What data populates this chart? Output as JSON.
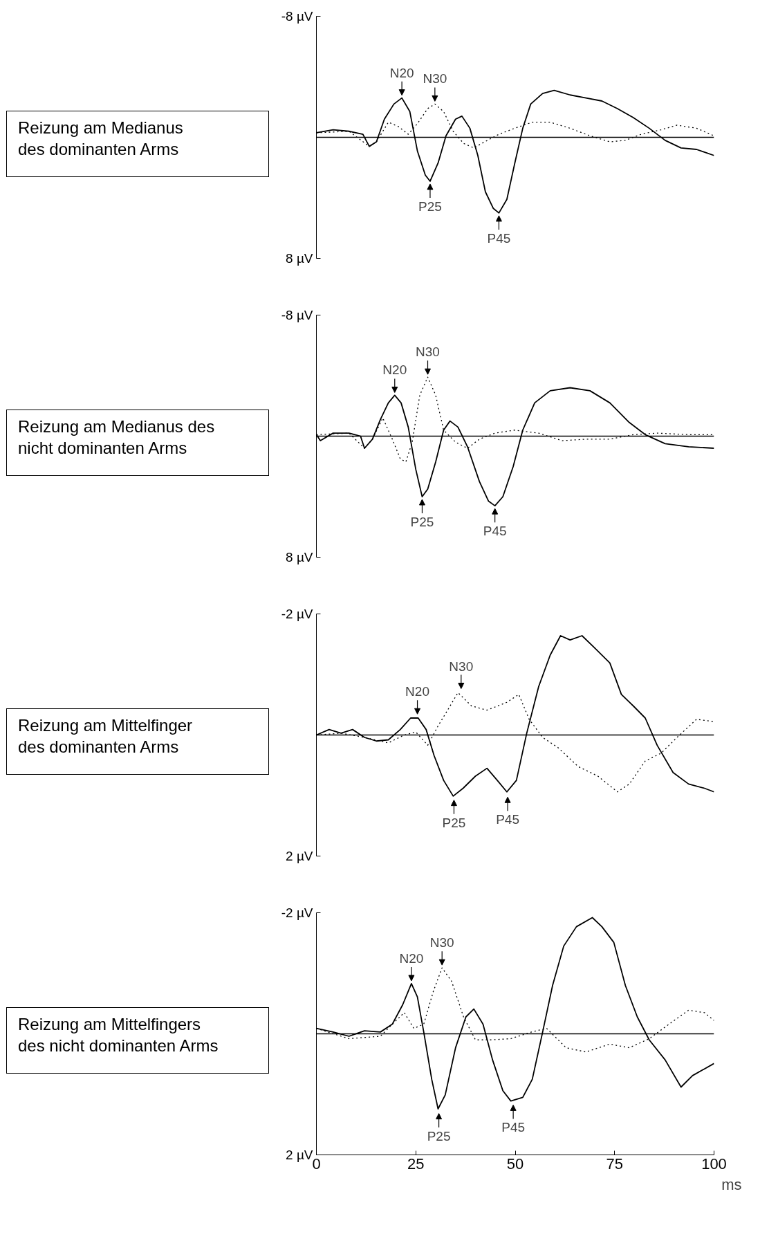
{
  "chart_data": [
    {
      "type": "line",
      "title": "Reizung am Medianus\ndes dominanten Arms",
      "xlim": [
        0,
        100
      ],
      "ylim": [
        8,
        -8
      ],
      "yticks": [
        {
          "value": -8,
          "label": "-8 µV"
        },
        {
          "value": 8,
          "label": "8 µV"
        }
      ],
      "tick_labels": "y",
      "grid": false,
      "ref_lines": [
        {
          "axis": "y",
          "value": 0,
          "color": "#000000"
        }
      ],
      "annotations": [
        {
          "text": "N20",
          "x": 21.5,
          "y": -2.6
        },
        {
          "text": "N30",
          "x": 29.8,
          "y": -2.2
        },
        {
          "text": "P25",
          "x": 28.6,
          "y": 2.9
        },
        {
          "text": "P45",
          "x": 45.9,
          "y": 5.0
        }
      ],
      "series": [
        {
          "color": "#000000",
          "line_style": "solid",
          "x": [
            0,
            4.2,
            8.2,
            11.7,
            13.3,
            15.1,
            17.1,
            19.5,
            21.5,
            23.5,
            25.4,
            27.4,
            28.6,
            30.6,
            32.6,
            35.0,
            36.6,
            38.6,
            40.6,
            42.5,
            44.5,
            45.9,
            47.9,
            49.9,
            51.9,
            53.9,
            56.9,
            59.8,
            63.8,
            67.8,
            71.8,
            75.7,
            79.7,
            83.7,
            87.7,
            91.7,
            95.6,
            100
          ],
          "values": [
            -0.3,
            -0.5,
            -0.4,
            -0.2,
            0.6,
            0.3,
            -1.2,
            -2.2,
            -2.6,
            -1.7,
            0.9,
            2.5,
            2.9,
            1.7,
            -0.1,
            -1.2,
            -1.4,
            -0.6,
            1.2,
            3.6,
            4.7,
            5.0,
            4.1,
            1.7,
            -0.6,
            -2.2,
            -2.9,
            -3.1,
            -2.8,
            -2.6,
            -2.4,
            -1.9,
            -1.3,
            -0.6,
            0.2,
            0.7,
            0.8,
            1.2
          ]
        },
        {
          "color": "#000000",
          "line_style": "dotted",
          "x": [
            0,
            8.2,
            13.3,
            15.1,
            18.1,
            20.7,
            23.1,
            25.4,
            28.0,
            29.8,
            32.0,
            34.4,
            37.0,
            39.6,
            42.3,
            45.9,
            49.9,
            54.3,
            58.8,
            63.8,
            68.8,
            73.8,
            77.7,
            81.7,
            86.7,
            90.7,
            95.6,
            100
          ],
          "values": [
            -0.3,
            -0.4,
            0.6,
            0.3,
            -1.0,
            -0.7,
            -0.2,
            -0.9,
            -1.9,
            -2.2,
            -1.7,
            -0.4,
            0.4,
            0.7,
            0.3,
            -0.2,
            -0.6,
            -1.0,
            -1.0,
            -0.6,
            -0.1,
            0.3,
            0.2,
            -0.2,
            -0.5,
            -0.8,
            -0.6,
            -0.1
          ]
        }
      ]
    },
    {
      "type": "line",
      "title": "Reizung am Medianus des\nnicht dominanten Arms",
      "xlim": [
        0,
        100
      ],
      "ylim": [
        8,
        -8
      ],
      "yticks": [
        {
          "value": -8,
          "label": "-8 µV"
        },
        {
          "value": 8,
          "label": "8 µV"
        }
      ],
      "tick_labels": "y",
      "grid": false,
      "ref_lines": [
        {
          "axis": "y",
          "value": 0,
          "color": "#000000"
        }
      ],
      "annotations": [
        {
          "text": "N20",
          "x": 19.7,
          "y": -2.7
        },
        {
          "text": "N30",
          "x": 28.0,
          "y": -3.9
        },
        {
          "text": "P25",
          "x": 26.6,
          "y": 4.0
        },
        {
          "text": "P45",
          "x": 44.9,
          "y": 4.6
        }
      ],
      "series": [
        {
          "color": "#000000",
          "line_style": "solid",
          "x": [
            0,
            1.0,
            4.2,
            8.2,
            11.1,
            12.1,
            14.1,
            16.1,
            18.1,
            19.7,
            21.3,
            23.1,
            25.0,
            26.6,
            28.0,
            30.0,
            32.0,
            33.6,
            35.6,
            38.0,
            41.0,
            43.3,
            44.9,
            46.9,
            49.5,
            51.9,
            54.9,
            58.8,
            63.8,
            68.8,
            73.8,
            78.7,
            82.7,
            87.7,
            93.6,
            100
          ],
          "values": [
            -0.1,
            0.3,
            -0.2,
            -0.2,
            0,
            0.8,
            0.2,
            -1.1,
            -2.2,
            -2.7,
            -2.2,
            -0.6,
            2.2,
            4.0,
            3.5,
            1.7,
            -0.4,
            -1.0,
            -0.6,
            0.7,
            3.0,
            4.3,
            4.6,
            4.0,
            2.0,
            -0.4,
            -2.2,
            -3.0,
            -3.2,
            -3.0,
            -2.2,
            -0.9,
            -0.1,
            0.5,
            0.7,
            0.8
          ]
        },
        {
          "color": "#000000",
          "line_style": "dotted",
          "x": [
            0,
            8.2,
            12.1,
            14.1,
            16.7,
            19.1,
            21.1,
            22.5,
            24.1,
            26.0,
            28.0,
            30.0,
            32.0,
            35.0,
            38.0,
            41.0,
            44.9,
            49.9,
            55.9,
            61.8,
            67.8,
            73.8,
            79.7,
            85.7,
            93.6,
            100
          ],
          "values": [
            -0.1,
            -0.2,
            0.8,
            0.2,
            -1.2,
            0.2,
            1.5,
            1.7,
            0.4,
            -2.7,
            -3.9,
            -2.7,
            -0.4,
            0.4,
            0.8,
            0.2,
            -0.2,
            -0.4,
            -0.2,
            0.3,
            0.2,
            0.2,
            -0.1,
            -0.2,
            -0.1,
            -0.1
          ]
        }
      ]
    },
    {
      "type": "line",
      "title": "Reizung am Mittelfinger\ndes dominanten Arms",
      "xlim": [
        0,
        100
      ],
      "ylim": [
        2,
        -2
      ],
      "yticks": [
        {
          "value": -2,
          "label": "-2 µV"
        },
        {
          "value": 2,
          "label": "2 µV"
        }
      ],
      "tick_labels": "y",
      "grid": false,
      "ref_lines": [
        {
          "axis": "y",
          "value": 0,
          "color": "#000000"
        }
      ],
      "annotations": [
        {
          "text": "N20",
          "x": 25.4,
          "y": -0.3
        },
        {
          "text": "N30",
          "x": 36.4,
          "y": -0.72
        },
        {
          "text": "P25",
          "x": 34.6,
          "y": 1.03
        },
        {
          "text": "P45",
          "x": 48.1,
          "y": 0.98
        }
      ],
      "series": [
        {
          "color": "#000000",
          "line_style": "solid",
          "x": [
            0,
            3.2,
            6.2,
            9.1,
            12.1,
            15.1,
            18.1,
            21.1,
            23.7,
            25.6,
            27.6,
            29.6,
            32.0,
            34.4,
            36.9,
            40.0,
            42.9,
            45.5,
            47.9,
            50.3,
            52.9,
            55.9,
            58.8,
            61.4,
            63.8,
            66.8,
            69.8,
            73.8,
            76.7,
            79.7,
            82.7,
            85.7,
            89.7,
            93.6,
            97.6,
            100
          ],
          "values": [
            0,
            -0.09,
            -0.03,
            -0.09,
            0.04,
            0.1,
            0.08,
            -0.09,
            -0.28,
            -0.28,
            -0.09,
            0.34,
            0.75,
            1.01,
            0.88,
            0.68,
            0.55,
            0.75,
            0.94,
            0.75,
            -0.03,
            -0.8,
            -1.32,
            -1.64,
            -1.57,
            -1.64,
            -1.45,
            -1.19,
            -0.67,
            -0.48,
            -0.28,
            0.17,
            0.62,
            0.81,
            0.88,
            0.94
          ]
        },
        {
          "color": "#000000",
          "line_style": "dotted",
          "x": [
            0,
            6.2,
            12.1,
            18.1,
            22.1,
            25.0,
            28.0,
            30.6,
            33.0,
            35.6,
            39.0,
            42.9,
            47.9,
            50.9,
            53.5,
            56.9,
            60.8,
            65.8,
            70.8,
            75.7,
            78.7,
            82.7,
            86.7,
            90.7,
            95.6,
            100
          ],
          "values": [
            0,
            -0.03,
            0.04,
            0.13,
            0,
            -0.05,
            0.17,
            -0.15,
            -0.41,
            -0.7,
            -0.48,
            -0.41,
            -0.54,
            -0.67,
            -0.26,
            0.04,
            0.21,
            0.52,
            0.68,
            0.94,
            0.81,
            0.43,
            0.3,
            0.04,
            -0.26,
            -0.22
          ]
        }
      ]
    },
    {
      "type": "line",
      "title": "Reizung am Mittelfingers\ndes nicht dominanten Arms",
      "xlabel": "ms",
      "xlim": [
        0,
        100
      ],
      "ylim": [
        2,
        -2
      ],
      "xticks": [
        0,
        25,
        50,
        75,
        100
      ],
      "yticks": [
        {
          "value": -2,
          "label": "-2 µV"
        },
        {
          "value": 2,
          "label": "2 µV"
        }
      ],
      "grid": false,
      "ref_lines": [
        {
          "axis": "y",
          "value": 0,
          "color": "#000000"
        }
      ],
      "annotations": [
        {
          "text": "N20",
          "x": 23.9,
          "y": -0.83
        },
        {
          "text": "N30",
          "x": 31.6,
          "y": -1.09
        },
        {
          "text": "P25",
          "x": 30.8,
          "y": 1.27
        },
        {
          "text": "P45",
          "x": 49.5,
          "y": 1.13
        }
      ],
      "series": [
        {
          "color": "#000000",
          "line_style": "solid",
          "x": [
            0,
            4.2,
            8.2,
            12.1,
            16.1,
            19.1,
            21.7,
            23.9,
            25.4,
            27.0,
            29.0,
            30.6,
            32.4,
            35.0,
            37.6,
            39.6,
            41.9,
            44.3,
            46.9,
            48.9,
            51.9,
            54.3,
            56.9,
            59.4,
            62.2,
            65.4,
            69.4,
            71.8,
            74.8,
            77.7,
            80.7,
            83.7,
            87.7,
            91.7,
            94.6,
            100
          ],
          "values": [
            -0.09,
            -0.03,
            0.04,
            -0.05,
            -0.03,
            -0.16,
            -0.48,
            -0.83,
            -0.61,
            -0.03,
            0.75,
            1.24,
            1.01,
            0.23,
            -0.28,
            -0.41,
            -0.16,
            0.43,
            0.94,
            1.11,
            1.05,
            0.75,
            -0.03,
            -0.8,
            -1.45,
            -1.77,
            -1.92,
            -1.77,
            -1.51,
            -0.8,
            -0.28,
            0.1,
            0.43,
            0.88,
            0.69,
            0.49
          ]
        },
        {
          "color": "#000000",
          "line_style": "dotted",
          "x": [
            0,
            8.2,
            16.1,
            19.1,
            22.1,
            24.5,
            27.0,
            29.4,
            31.6,
            34.0,
            37.0,
            40.0,
            43.9,
            48.9,
            54.1,
            57.9,
            62.8,
            67.8,
            73.8,
            78.7,
            83.7,
            88.7,
            93.6,
            97.6,
            100
          ],
          "values": [
            -0.09,
            0.08,
            0.04,
            -0.16,
            -0.35,
            -0.09,
            -0.16,
            -0.7,
            -1.09,
            -0.87,
            -0.28,
            0.1,
            0.1,
            0.08,
            -0.03,
            -0.09,
            0.23,
            0.3,
            0.17,
            0.23,
            0.08,
            -0.16,
            -0.39,
            -0.35,
            -0.22
          ]
        }
      ]
    }
  ]
}
